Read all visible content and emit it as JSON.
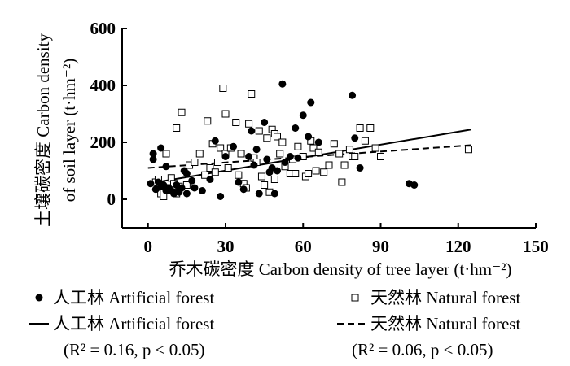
{
  "chart_data": {
    "type": "scatter",
    "xlabel": "乔木碳密度 Carbon density of tree layer (t·hm⁻²)",
    "ylabel_line1": "土壤碳密度 Carbon density",
    "ylabel_line2": "of soil layer (t·hm⁻²)",
    "xlim": [
      -10,
      150
    ],
    "ylim": [
      -100,
      600
    ],
    "xticks": [
      "0",
      "30",
      "60",
      "90",
      "120",
      "150"
    ],
    "xtick_values": [
      0,
      30,
      60,
      90,
      120,
      150
    ],
    "yticks": [
      "0",
      "200",
      "400",
      "600"
    ],
    "ytick_values": [
      0,
      200,
      400,
      600
    ],
    "grid": false,
    "legend_position": "bottom",
    "legend": {
      "artificial_points": "人工林 Artificial forest",
      "natural_points": "天然林 Natural forest",
      "artificial_fit": "人工林 Artificial forest",
      "natural_fit": "天然林 Natural forest",
      "artificial_stats": "(R² = 0.16, p < 0.05)",
      "natural_stats": "(R² = 0.06, p < 0.05)"
    },
    "series": [
      {
        "name": "人工林 Artificial forest",
        "marker": "filled-circle",
        "points": [
          [
            1,
            55
          ],
          [
            2,
            140
          ],
          [
            2,
            160
          ],
          [
            3,
            35
          ],
          [
            4,
            60
          ],
          [
            5,
            45
          ],
          [
            5,
            180
          ],
          [
            6,
            50
          ],
          [
            7,
            30
          ],
          [
            7,
            115
          ],
          [
            8,
            40
          ],
          [
            9,
            30
          ],
          [
            10,
            20
          ],
          [
            10,
            25
          ],
          [
            11,
            50
          ],
          [
            12,
            30
          ],
          [
            12,
            25
          ],
          [
            13,
            40
          ],
          [
            14,
            100
          ],
          [
            15,
            90
          ],
          [
            15,
            20
          ],
          [
            17,
            65
          ],
          [
            18,
            40
          ],
          [
            21,
            30
          ],
          [
            24,
            70
          ],
          [
            26,
            205
          ],
          [
            28,
            10
          ],
          [
            30,
            150
          ],
          [
            33,
            185
          ],
          [
            35,
            60
          ],
          [
            37,
            35
          ],
          [
            39,
            150
          ],
          [
            40,
            240
          ],
          [
            41,
            120
          ],
          [
            42,
            175
          ],
          [
            43,
            20
          ],
          [
            45,
            270
          ],
          [
            46,
            140
          ],
          [
            47,
            95
          ],
          [
            48,
            110
          ],
          [
            49,
            20
          ],
          [
            50,
            100
          ],
          [
            52,
            405
          ],
          [
            53,
            130
          ],
          [
            55,
            150
          ],
          [
            57,
            250
          ],
          [
            58,
            145
          ],
          [
            60,
            295
          ],
          [
            62,
            220
          ],
          [
            63,
            340
          ],
          [
            66,
            200
          ],
          [
            79,
            365
          ],
          [
            80,
            215
          ],
          [
            82,
            110
          ],
          [
            101,
            55
          ],
          [
            103,
            50
          ]
        ]
      },
      {
        "name": "天然林 Natural forest",
        "marker": "open-square",
        "points": [
          [
            3,
            60
          ],
          [
            4,
            70
          ],
          [
            5,
            20
          ],
          [
            6,
            10
          ],
          [
            6,
            30
          ],
          [
            7,
            160
          ],
          [
            8,
            40
          ],
          [
            9,
            75
          ],
          [
            10,
            55
          ],
          [
            11,
            20
          ],
          [
            11,
            250
          ],
          [
            12,
            45
          ],
          [
            13,
            305
          ],
          [
            15,
            50
          ],
          [
            16,
            120
          ],
          [
            18,
            130
          ],
          [
            20,
            160
          ],
          [
            22,
            85
          ],
          [
            23,
            275
          ],
          [
            24,
            110
          ],
          [
            25,
            195
          ],
          [
            26,
            95
          ],
          [
            27,
            130
          ],
          [
            28,
            180
          ],
          [
            29,
            390
          ],
          [
            30,
            300
          ],
          [
            30,
            160
          ],
          [
            31,
            110
          ],
          [
            32,
            180
          ],
          [
            34,
            270
          ],
          [
            35,
            85
          ],
          [
            36,
            160
          ],
          [
            37,
            55
          ],
          [
            38,
            40
          ],
          [
            39,
            265
          ],
          [
            40,
            370
          ],
          [
            41,
            145
          ],
          [
            42,
            130
          ],
          [
            43,
            240
          ],
          [
            44,
            80
          ],
          [
            45,
            50
          ],
          [
            46,
            215
          ],
          [
            47,
            25
          ],
          [
            48,
            245
          ],
          [
            49,
            70
          ],
          [
            49,
            230
          ],
          [
            50,
            220
          ],
          [
            51,
            160
          ],
          [
            52,
            200
          ],
          [
            53,
            115
          ],
          [
            55,
            90
          ],
          [
            56,
            140
          ],
          [
            57,
            90
          ],
          [
            58,
            185
          ],
          [
            60,
            150
          ],
          [
            61,
            80
          ],
          [
            62,
            90
          ],
          [
            63,
            205
          ],
          [
            64,
            180
          ],
          [
            65,
            100
          ],
          [
            66,
            165
          ],
          [
            68,
            95
          ],
          [
            70,
            120
          ],
          [
            72,
            195
          ],
          [
            74,
            160
          ],
          [
            75,
            60
          ],
          [
            76,
            120
          ],
          [
            78,
            175
          ],
          [
            79,
            150
          ],
          [
            80,
            150
          ],
          [
            82,
            250
          ],
          [
            84,
            205
          ],
          [
            86,
            250
          ],
          [
            88,
            180
          ],
          [
            90,
            150
          ],
          [
            124,
            175
          ]
        ]
      }
    ],
    "fits": [
      {
        "name": "人工林 Artificial forest",
        "style": "solid",
        "x": [
          0,
          125
        ],
        "y": [
          55,
          245
        ]
      },
      {
        "name": "天然林 Natural forest",
        "style": "dashed",
        "x": [
          0,
          125
        ],
        "y": [
          110,
          190
        ]
      }
    ]
  }
}
